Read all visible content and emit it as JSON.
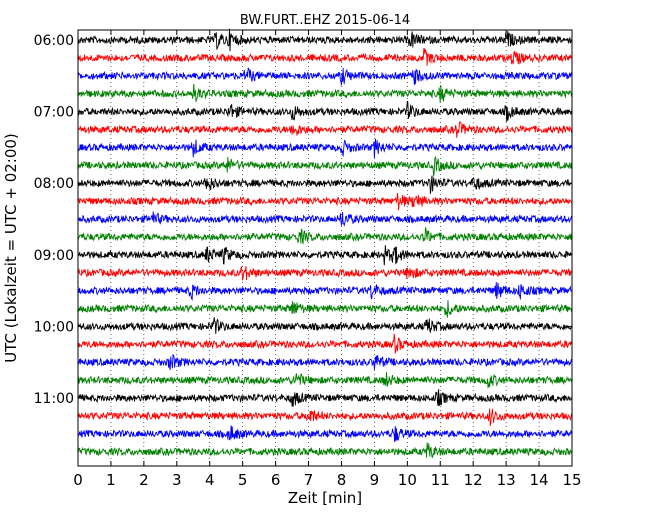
{
  "chart_data": {
    "type": "line",
    "title": "BW.FURT..EHZ 2015-06-14",
    "xlabel": "Zeit  [min]",
    "ylabel": "UTC (Lokalzeit = UTC + 02:00)",
    "xlim": [
      0,
      15
    ],
    "x_ticks": [
      "0",
      "1",
      "2",
      "3",
      "4",
      "5",
      "6",
      "7",
      "8",
      "9",
      "10",
      "11",
      "12",
      "13",
      "14",
      "15"
    ],
    "y_ticks": [
      "06:00",
      "07:00",
      "08:00",
      "09:00",
      "10:00",
      "11:00"
    ],
    "trace_interval_minutes": 15,
    "trace_colors": [
      "#000000",
      "#ff0000",
      "#0000ff",
      "#008000"
    ],
    "traces": [
      {
        "start": "06:00",
        "color": "#000000",
        "events_min": [
          4.2,
          4.6,
          10.1,
          13.0
        ]
      },
      {
        "start": "06:15",
        "color": "#ff0000",
        "events_min": [
          10.5,
          13.2
        ]
      },
      {
        "start": "06:30",
        "color": "#0000ff",
        "events_min": [
          5.1,
          8.0,
          10.2
        ]
      },
      {
        "start": "06:45",
        "color": "#008000",
        "events_min": [
          3.5,
          11.0
        ]
      },
      {
        "start": "07:00",
        "color": "#000000",
        "events_min": [
          4.6,
          6.5,
          10.0,
          13.0
        ]
      },
      {
        "start": "07:15",
        "color": "#ff0000",
        "events_min": [
          6.5,
          11.5
        ]
      },
      {
        "start": "07:30",
        "color": "#0000ff",
        "events_min": [
          3.5,
          8.0,
          9.0
        ]
      },
      {
        "start": "07:45",
        "color": "#008000",
        "events_min": [
          4.5,
          10.8
        ]
      },
      {
        "start": "08:00",
        "color": "#000000",
        "events_min": [
          3.9,
          10.7,
          12.0
        ]
      },
      {
        "start": "08:15",
        "color": "#ff0000",
        "events_min": [
          9.7,
          10.2
        ]
      },
      {
        "start": "08:30",
        "color": "#0000ff",
        "events_min": [
          2.2,
          8.0
        ]
      },
      {
        "start": "08:45",
        "color": "#008000",
        "events_min": [
          6.7,
          10.5
        ]
      },
      {
        "start": "09:00",
        "color": "#000000",
        "events_min": [
          3.9,
          4.4,
          9.3,
          9.6
        ]
      },
      {
        "start": "09:15",
        "color": "#ff0000",
        "events_min": [
          5.0,
          10.0
        ]
      },
      {
        "start": "09:30",
        "color": "#0000ff",
        "events_min": [
          3.4,
          8.9,
          12.7,
          13.4
        ]
      },
      {
        "start": "09:45",
        "color": "#008000",
        "events_min": [
          6.5,
          11.2
        ]
      },
      {
        "start": "10:00",
        "color": "#000000",
        "events_min": [
          4.1,
          10.6
        ]
      },
      {
        "start": "10:15",
        "color": "#ff0000",
        "events_min": [
          9.6
        ]
      },
      {
        "start": "10:30",
        "color": "#0000ff",
        "events_min": [
          2.8,
          9.0
        ]
      },
      {
        "start": "10:45",
        "color": "#008000",
        "events_min": [
          6.6,
          9.3,
          12.4
        ]
      },
      {
        "start": "11:00",
        "color": "#000000",
        "events_min": [
          6.5,
          10.9
        ]
      },
      {
        "start": "11:15",
        "color": "#ff0000",
        "events_min": [
          7.0,
          12.5
        ]
      },
      {
        "start": "11:30",
        "color": "#0000ff",
        "events_min": [
          4.6,
          9.6
        ]
      },
      {
        "start": "11:45",
        "color": "#008000",
        "events_min": [
          10.6
        ]
      }
    ],
    "grid": "vertical dotted at each minute",
    "legend": "none"
  }
}
